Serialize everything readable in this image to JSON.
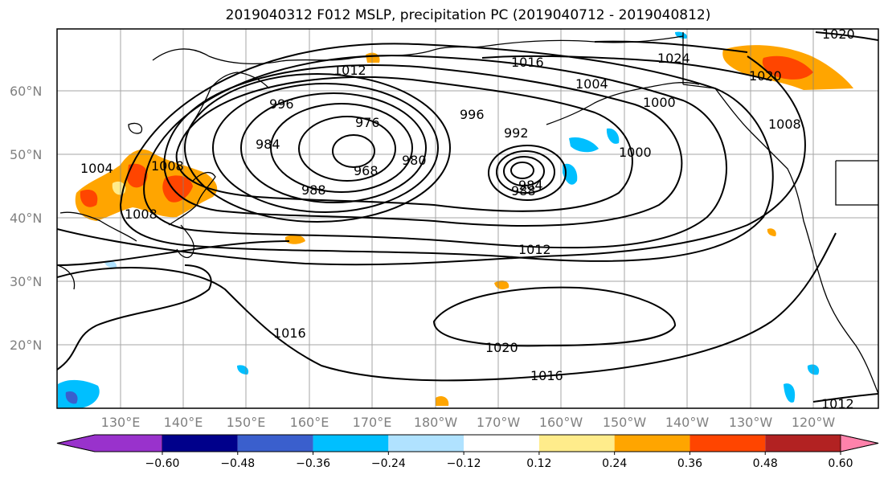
{
  "title": "2019040312 F012 MSLP, precipitation PC (2019040712 - 2019040812)",
  "lat_labels": [
    "60°N",
    "50°N",
    "40°N",
    "30°N",
    "20°N"
  ],
  "lon_labels": [
    "130°E",
    "140°E",
    "150°E",
    "160°E",
    "170°E",
    "180°W",
    "170°W",
    "160°W",
    "150°W",
    "140°W",
    "130°W",
    "120°W"
  ],
  "isobar_labels": [
    "1020",
    "1024",
    "1016",
    "1012",
    "996",
    "1004",
    "1000",
    "976",
    "984",
    "996",
    "992",
    "1008",
    "1000",
    "968",
    "980",
    "984",
    "988",
    "1004",
    "988",
    "1008",
    "1012",
    "1016",
    "1020",
    "1016",
    "1012",
    "1020",
    "1008"
  ],
  "colorbar": {
    "colors": [
      "#9932cc",
      "#00008b",
      "#3a5fcd",
      "#00bfff",
      "#b0e2ff",
      "#ffffff",
      "#ffec8b",
      "#ffa500",
      "#ff4500",
      "#b22222",
      "#ff82ab"
    ],
    "tick_labels": [
      "−0.60",
      "−0.48",
      "−0.36",
      "−0.24",
      "−0.12",
      "0.12",
      "0.24",
      "0.36",
      "0.48",
      "0.60"
    ]
  },
  "colors": {
    "positive_light": "#ffec8b",
    "positive_orange": "#ffa500",
    "positive_red": "#ff4500",
    "negative_light": "#b0e2ff",
    "negative_cyan": "#00bfff",
    "negative_blue": "#3a5fcd",
    "gridline": "#808080",
    "isobar": "#000000"
  }
}
